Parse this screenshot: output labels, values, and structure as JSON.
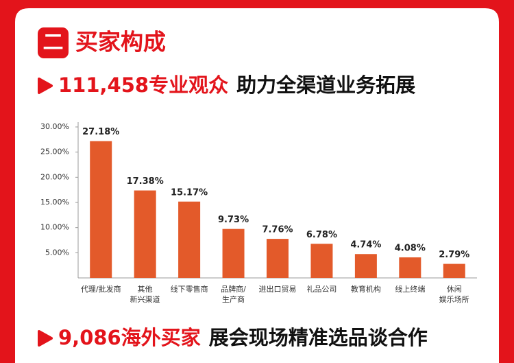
{
  "section": {
    "number": "二",
    "title": "买家构成"
  },
  "headline": {
    "highlight": "111,458专业观众",
    "text": "助力全渠道业务拓展"
  },
  "chart_data": {
    "type": "bar",
    "categories": [
      [
        "代理/批发商"
      ],
      [
        "其他",
        "新兴渠道"
      ],
      [
        "线下零售商"
      ],
      [
        "品牌商/",
        "生产商"
      ],
      [
        "进出口贸易"
      ],
      [
        "礼品公司"
      ],
      [
        "教育机构"
      ],
      [
        "线上终端"
      ],
      [
        "休闲",
        "娱乐场所"
      ]
    ],
    "values": [
      27.18,
      17.38,
      15.17,
      9.73,
      7.76,
      6.78,
      4.74,
      4.08,
      2.79
    ],
    "value_labels": [
      "27.18%",
      "17.38%",
      "15.17%",
      "9.73%",
      "7.76%",
      "6.78%",
      "4.74%",
      "4.08%",
      "2.79%"
    ],
    "color": "#e35a2a",
    "ylim": [
      0,
      30
    ],
    "yticks": [
      {
        "value": 5,
        "label": "5.00%"
      },
      {
        "value": 10,
        "label": "10.00%"
      },
      {
        "value": 15,
        "label": "15.00%"
      },
      {
        "value": 20,
        "label": "20.00%"
      },
      {
        "value": 25,
        "label": "25.00%"
      },
      {
        "value": 30,
        "label": "30.00%"
      }
    ],
    "grid": false
  },
  "footer": {
    "highlight": "9,086海外买家",
    "text": "展会现场精准选品谈合作"
  }
}
